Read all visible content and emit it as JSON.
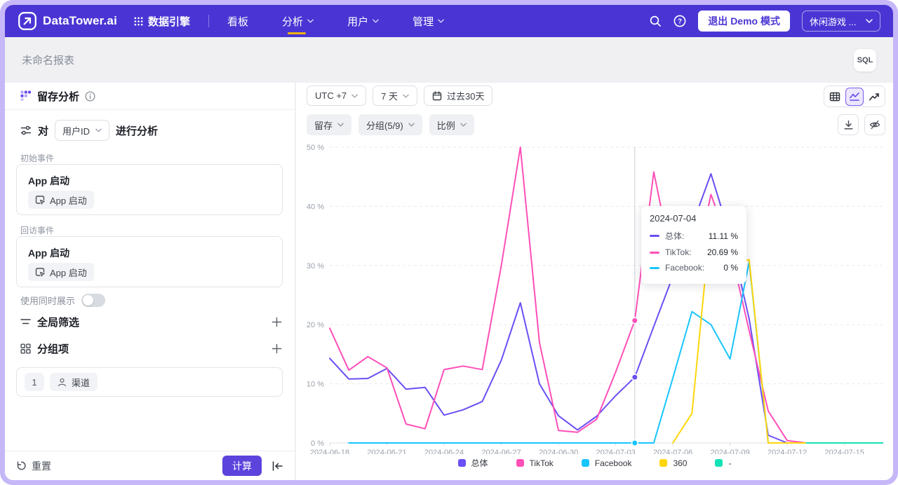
{
  "navbar": {
    "logo_text": "DataTower.ai",
    "engine_label": "数据引擎",
    "items": [
      {
        "label": "看板",
        "chevron": false,
        "active": false
      },
      {
        "label": "分析",
        "chevron": true,
        "active": true
      },
      {
        "label": "用户",
        "chevron": true,
        "active": false
      },
      {
        "label": "管理",
        "chevron": true,
        "active": false
      }
    ],
    "exit_demo_label": "退出 Demo 模式",
    "project_label": "休闲游戏 ...",
    "bg_color": "#4A35D4",
    "active_underline_color": "#F0B30E"
  },
  "report_bar": {
    "title": "未命名报表",
    "sql_badge": "SQL"
  },
  "sidebar": {
    "title": "留存分析",
    "analyze": {
      "prefix": "对",
      "subject": "用户ID",
      "suffix": "进行分析"
    },
    "initial_event": {
      "label": "初始事件",
      "title": "App 启动",
      "chip": "App 启动"
    },
    "return_event": {
      "label": "回访事件",
      "title": "App 启动",
      "chip": "App 启动"
    },
    "toggle_label": "使用同时展示",
    "toggle_on": false,
    "global_filter_label": "全局筛选",
    "group_by_label": "分组项",
    "group_item": {
      "index": "1",
      "chip": "渠道"
    },
    "footer": {
      "reset_label": "重置",
      "calc_label": "计算"
    }
  },
  "chart_toolbar": {
    "timezone": "UTC +7",
    "granularity": "7 天",
    "date_range": "过去30天",
    "metric_chips": [
      {
        "label": "留存"
      },
      {
        "label": "分组(5/9)"
      },
      {
        "label": "比例"
      }
    ],
    "view_modes": [
      "table-view",
      "line-view",
      "trend-view"
    ],
    "active_view": "line-view"
  },
  "icons": {
    "navbar": [
      "logo-icon",
      "grid-dots-icon",
      "search-icon",
      "help-icon",
      "chevron-down-icon"
    ],
    "sidebar": [
      "retention-icon",
      "info-icon",
      "analyze-sliders-icon",
      "app-launch-icon",
      "filter-icon",
      "group-grid-icon",
      "plus-icon",
      "person-icon",
      "reset-icon",
      "collapse-left-icon"
    ],
    "chart": [
      "calendar-icon",
      "table-view-icon",
      "line-view-icon",
      "trend-view-icon",
      "download-icon",
      "eye-off-icon"
    ]
  },
  "chart_data": {
    "type": "line",
    "title": "",
    "xlabel": "",
    "ylabel": "",
    "ylim": [
      0,
      50
    ],
    "yticks": [
      "0 %",
      "10 %",
      "20 %",
      "30 %",
      "40 %",
      "50 %"
    ],
    "xtick_every": 3,
    "grid": true,
    "legend_position": "bottom",
    "hover_date": "2024-07-04",
    "x": [
      "2024-06-18",
      "2024-06-19",
      "2024-06-20",
      "2024-06-21",
      "2024-06-22",
      "2024-06-23",
      "2024-06-24",
      "2024-06-25",
      "2024-06-26",
      "2024-06-27",
      "2024-06-28",
      "2024-06-29",
      "2024-06-30",
      "2024-07-01",
      "2024-07-02",
      "2024-07-03",
      "2024-07-04",
      "2024-07-05",
      "2024-07-06",
      "2024-07-07",
      "2024-07-08",
      "2024-07-09",
      "2024-07-10",
      "2024-07-11",
      "2024-07-12",
      "2024-07-13",
      "2024-07-14",
      "2024-07-15",
      "2024-07-16",
      "2024-07-17"
    ],
    "series": [
      {
        "name": "总体",
        "color": "#6B4EF5",
        "values": [
          14.3,
          10.8,
          10.9,
          12.6,
          9.1,
          9.4,
          4.7,
          5.6,
          7.0,
          14.0,
          23.7,
          10.0,
          4.6,
          2.2,
          4.5,
          8.0,
          11.11,
          19.7,
          28.2,
          36.7,
          45.5,
          35.0,
          21.0,
          1.3,
          0,
          0,
          0,
          0,
          0,
          0
        ]
      },
      {
        "name": "TikTok",
        "color": "#FF4FB8",
        "values": [
          19.4,
          12.3,
          14.6,
          12.7,
          3.2,
          2.4,
          12.4,
          13.0,
          12.4,
          30.0,
          50.0,
          17.0,
          2.1,
          1.8,
          4.0,
          12.0,
          20.69,
          45.8,
          30.0,
          27.0,
          42.0,
          33.0,
          19.0,
          5.4,
          0.4,
          0,
          0,
          0,
          0,
          0
        ]
      },
      {
        "name": "Facebook",
        "color": "#18C5FF",
        "values": [
          null,
          0,
          0,
          0,
          0,
          0,
          0,
          0,
          0,
          0,
          0,
          0,
          0,
          0,
          0,
          0,
          0,
          0,
          11.0,
          22.2,
          20.0,
          14.2,
          30.6,
          0,
          0,
          0,
          0,
          0,
          0,
          0
        ]
      },
      {
        "name": "360",
        "color": "#FFD60B",
        "values": [
          null,
          null,
          null,
          null,
          null,
          null,
          null,
          null,
          null,
          null,
          null,
          null,
          null,
          null,
          null,
          null,
          null,
          null,
          0,
          5.0,
          38.0,
          30.0,
          31.0,
          0,
          0,
          0,
          null,
          null,
          null,
          null
        ]
      },
      {
        "name": "-",
        "color": "#14E1B4",
        "values": [
          null,
          null,
          null,
          null,
          null,
          null,
          null,
          null,
          null,
          null,
          null,
          null,
          null,
          null,
          null,
          null,
          null,
          null,
          null,
          null,
          null,
          null,
          null,
          null,
          null,
          0,
          0,
          0,
          0,
          0
        ]
      }
    ]
  },
  "tooltip": {
    "date": "2024-07-04",
    "rows": [
      {
        "name": "总体:",
        "value": "11.11 %",
        "color": "#6B4EF5"
      },
      {
        "name": "TikTok:",
        "value": "20.69 %",
        "color": "#FF4FB8"
      },
      {
        "name": "Facebook:",
        "value": "0 %",
        "color": "#18C5FF"
      }
    ]
  }
}
